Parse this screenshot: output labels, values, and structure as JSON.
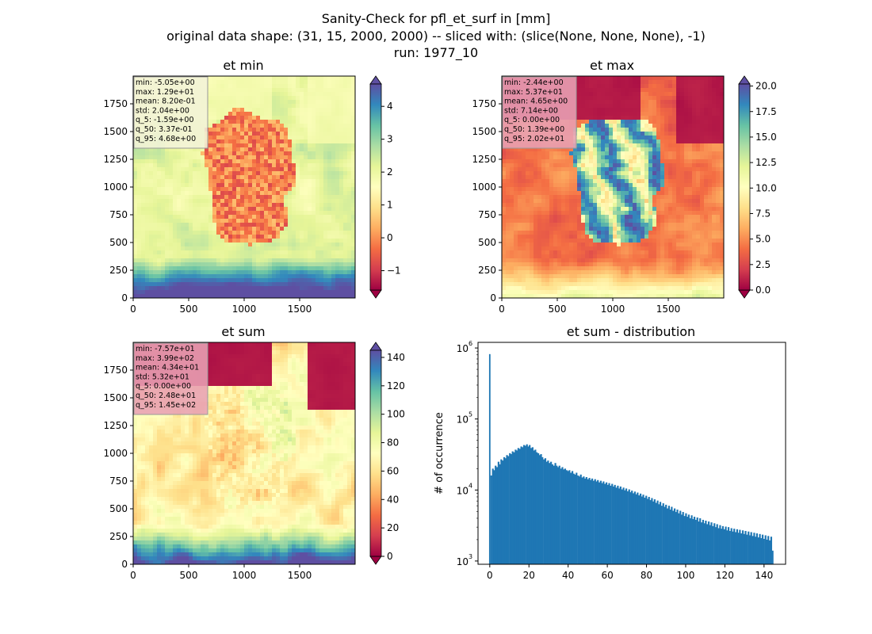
{
  "figure": {
    "title_lines": [
      "Sanity-Check for pfl_et_surf in [mm]",
      "original data shape: (31, 15, 2000, 2000) -- sliced with: (slice(None, None, None), -1)",
      "run: 1977_10"
    ]
  },
  "colors": {
    "spectral": [
      "#9e0142",
      "#d53e4f",
      "#f46d43",
      "#fdae61",
      "#fee08b",
      "#ffffbf",
      "#e6f598",
      "#abdda4",
      "#66c2a5",
      "#3288bd",
      "#5e4fa2"
    ],
    "histogram_bar": "#1f77b4",
    "stats_box_light": "#f2f2d8",
    "stats_box_pink": "#e8a0b4"
  },
  "chart_data": [
    {
      "type": "heatmap",
      "title": "et min",
      "xlim": [
        0,
        2000
      ],
      "ylim": [
        0,
        2000
      ],
      "xticks": [
        "0",
        "500",
        "1000",
        "1500"
      ],
      "yticks": [
        "0",
        "250",
        "500",
        "750",
        "1000",
        "1250",
        "1500",
        "1750"
      ],
      "colorbar": {
        "range": [
          -1.59,
          4.68
        ],
        "ticks": [
          "−1",
          "0",
          "1",
          "2",
          "3",
          "4"
        ],
        "tick_values": [
          -1,
          0,
          1,
          2,
          3,
          4
        ],
        "extend": "both"
      },
      "stats": [
        "min: -5.05e+00",
        "max: 1.29e+01",
        "mean: 8.20e-01",
        "std: 2.04e+00",
        "q_5: -1.59e+00",
        "q_50: 3.37e-01",
        "q_95: 4.68e+00"
      ]
    },
    {
      "type": "heatmap",
      "title": "et max",
      "xlim": [
        0,
        2000
      ],
      "ylim": [
        0,
        2000
      ],
      "xticks": [
        "0",
        "500",
        "1000",
        "1500"
      ],
      "yticks": [
        "0",
        "250",
        "500",
        "750",
        "1000",
        "1250",
        "1500",
        "1750"
      ],
      "colorbar": {
        "range": [
          0.0,
          20.2
        ],
        "ticks": [
          "0.0",
          "2.5",
          "5.0",
          "7.5",
          "10.0",
          "12.5",
          "15.0",
          "17.5",
          "20.0"
        ],
        "tick_values": [
          0,
          2.5,
          5,
          7.5,
          10,
          12.5,
          15,
          17.5,
          20
        ],
        "extend": "both"
      },
      "stats": [
        "min: -2.44e+00",
        "max: 5.37e+01",
        "mean: 4.65e+00",
        "std: 7.14e+00",
        "q_5: 0.00e+00",
        "q_50: 1.39e+00",
        "q_95: 2.02e+01"
      ]
    },
    {
      "type": "heatmap",
      "title": "et sum",
      "xlim": [
        0,
        2000
      ],
      "ylim": [
        0,
        2000
      ],
      "xticks": [
        "0",
        "500",
        "1000",
        "1500"
      ],
      "yticks": [
        "0",
        "250",
        "500",
        "750",
        "1000",
        "1250",
        "1500",
        "1750"
      ],
      "colorbar": {
        "range": [
          0,
          145
        ],
        "ticks": [
          "0",
          "20",
          "40",
          "60",
          "80",
          "100",
          "120",
          "140"
        ],
        "tick_values": [
          0,
          20,
          40,
          60,
          80,
          100,
          120,
          140
        ],
        "extend": "both"
      },
      "stats": [
        "min: -7.57e+01",
        "max: 3.99e+02",
        "mean: 4.34e+01",
        "std: 5.32e+01",
        "q_5: 0.00e+00",
        "q_50: 2.48e+01",
        "q_95: 1.45e+02"
      ]
    },
    {
      "type": "bar",
      "title": "et sum - distribution",
      "ylabel": "# of occurrence",
      "yscale": "log",
      "xlim": [
        -6,
        151
      ],
      "ylim": [
        900,
        1200000
      ],
      "xticks": [
        0,
        20,
        40,
        60,
        80,
        100,
        120,
        140
      ],
      "yticks": [
        {
          "label": "10",
          "exp": "3",
          "value": 1000
        },
        {
          "label": "10",
          "exp": "4",
          "value": 10000
        },
        {
          "label": "10",
          "exp": "5",
          "value": 100000
        },
        {
          "label": "10",
          "exp": "6",
          "value": 1000000
        }
      ],
      "bin_width": 0.73,
      "spike": {
        "x": 0,
        "value": 820000
      },
      "bins": [
        [
          0.7,
          16000
        ],
        [
          1.5,
          20000
        ],
        [
          2.2,
          19000
        ],
        [
          2.9,
          22000
        ],
        [
          3.6,
          21000
        ],
        [
          4.4,
          25000
        ],
        [
          5.1,
          23000
        ],
        [
          5.8,
          27000
        ],
        [
          6.5,
          26000
        ],
        [
          7.3,
          29000
        ],
        [
          8.0,
          28000
        ],
        [
          8.7,
          31000
        ],
        [
          9.4,
          30000
        ],
        [
          10.2,
          33000
        ],
        [
          10.9,
          32000
        ],
        [
          11.6,
          35000
        ],
        [
          12.3,
          34000
        ],
        [
          13.1,
          37000
        ],
        [
          13.8,
          36000
        ],
        [
          14.5,
          39000
        ],
        [
          15.2,
          38000
        ],
        [
          16.0,
          41000
        ],
        [
          16.7,
          40000
        ],
        [
          17.4,
          43000
        ],
        [
          18.1,
          42000
        ],
        [
          18.9,
          44000
        ],
        [
          19.6,
          41000
        ],
        [
          20.3,
          43000
        ],
        [
          21.0,
          39000
        ],
        [
          21.8,
          40000
        ],
        [
          22.5,
          36000
        ],
        [
          23.2,
          37000
        ],
        [
          23.9,
          34000
        ],
        [
          24.7,
          33000
        ],
        [
          25.4,
          31000
        ],
        [
          26.1,
          32000
        ],
        [
          26.8,
          29000
        ],
        [
          27.6,
          27000
        ],
        [
          28.3,
          28000
        ],
        [
          29.0,
          25000
        ],
        [
          29.7,
          26000
        ],
        [
          30.5,
          24000
        ],
        [
          31.2,
          25000
        ],
        [
          31.9,
          23000
        ],
        [
          32.6,
          22000
        ],
        [
          33.4,
          24000
        ],
        [
          34.1,
          22000
        ],
        [
          34.8,
          21000
        ],
        [
          35.5,
          22000
        ],
        [
          36.3,
          20000
        ],
        [
          37.0,
          21000
        ],
        [
          37.7,
          19500
        ],
        [
          38.4,
          20000
        ],
        [
          39.2,
          19000
        ],
        [
          39.9,
          18500
        ],
        [
          40.6,
          19000
        ],
        [
          41.3,
          17500
        ],
        [
          42.1,
          18500
        ],
        [
          42.8,
          17000
        ],
        [
          43.5,
          16500
        ],
        [
          44.2,
          17500
        ],
        [
          45.0,
          16000
        ],
        [
          45.7,
          15500
        ],
        [
          46.4,
          16500
        ],
        [
          47.1,
          15000
        ],
        [
          47.9,
          15500
        ],
        [
          48.6,
          14500
        ],
        [
          49.3,
          15200
        ],
        [
          50.0,
          14200
        ],
        [
          50.8,
          14800
        ],
        [
          51.5,
          13800
        ],
        [
          52.2,
          14500
        ],
        [
          52.9,
          13500
        ],
        [
          53.7,
          14200
        ],
        [
          54.4,
          13200
        ],
        [
          55.1,
          13800
        ],
        [
          55.8,
          12800
        ],
        [
          56.6,
          13500
        ],
        [
          57.3,
          12500
        ],
        [
          58.0,
          13200
        ],
        [
          58.7,
          12200
        ],
        [
          59.5,
          12800
        ],
        [
          60.2,
          11800
        ],
        [
          60.9,
          12500
        ],
        [
          61.6,
          11500
        ],
        [
          62.4,
          12200
        ],
        [
          63.1,
          11200
        ],
        [
          63.8,
          11800
        ],
        [
          64.5,
          10800
        ],
        [
          65.3,
          11500
        ],
        [
          66.0,
          10500
        ],
        [
          66.7,
          11200
        ],
        [
          67.4,
          10200
        ],
        [
          68.2,
          10800
        ],
        [
          68.9,
          9900
        ],
        [
          69.6,
          10500
        ],
        [
          70.3,
          9600
        ],
        [
          71.1,
          10200
        ],
        [
          71.8,
          9300
        ],
        [
          72.5,
          9800
        ],
        [
          73.2,
          9000
        ],
        [
          74.0,
          9500
        ],
        [
          74.7,
          8700
        ],
        [
          75.4,
          9200
        ],
        [
          76.1,
          8400
        ],
        [
          76.9,
          8900
        ],
        [
          77.6,
          8100
        ],
        [
          78.3,
          8600
        ],
        [
          79.0,
          7800
        ],
        [
          79.8,
          8300
        ],
        [
          80.5,
          7500
        ],
        [
          81.2,
          8000
        ],
        [
          81.9,
          7200
        ],
        [
          82.7,
          7700
        ],
        [
          83.4,
          6900
        ],
        [
          84.1,
          7400
        ],
        [
          84.8,
          6600
        ],
        [
          85.6,
          7100
        ],
        [
          86.3,
          6300
        ],
        [
          87.0,
          6800
        ],
        [
          87.7,
          6000
        ],
        [
          88.5,
          6500
        ],
        [
          89.2,
          5800
        ],
        [
          89.9,
          6200
        ],
        [
          90.6,
          5500
        ],
        [
          91.4,
          6000
        ],
        [
          92.1,
          5300
        ],
        [
          92.8,
          5800
        ],
        [
          93.5,
          5100
        ],
        [
          94.3,
          5500
        ],
        [
          95.0,
          4900
        ],
        [
          95.7,
          5300
        ],
        [
          96.4,
          4700
        ],
        [
          97.2,
          5100
        ],
        [
          97.9,
          4500
        ],
        [
          98.6,
          4900
        ],
        [
          99.3,
          4300
        ],
        [
          100.1,
          4700
        ],
        [
          100.8,
          4200
        ],
        [
          101.5,
          4500
        ],
        [
          102.2,
          4000
        ],
        [
          103.0,
          4400
        ],
        [
          103.7,
          3900
        ],
        [
          104.4,
          4200
        ],
        [
          105.1,
          3800
        ],
        [
          105.9,
          4100
        ],
        [
          106.6,
          3600
        ],
        [
          107.3,
          4000
        ],
        [
          108.0,
          3500
        ],
        [
          108.8,
          3800
        ],
        [
          109.5,
          3400
        ],
        [
          110.2,
          3700
        ],
        [
          110.9,
          3300
        ],
        [
          111.7,
          3600
        ],
        [
          112.4,
          3200
        ],
        [
          113.1,
          3500
        ],
        [
          113.8,
          3100
        ],
        [
          114.6,
          3400
        ],
        [
          115.3,
          3000
        ],
        [
          116.0,
          3300
        ],
        [
          116.7,
          2900
        ],
        [
          117.5,
          3200
        ],
        [
          118.2,
          2850
        ],
        [
          118.9,
          3100
        ],
        [
          119.6,
          2800
        ],
        [
          120.4,
          3050
        ],
        [
          121.1,
          2700
        ],
        [
          121.8,
          3000
        ],
        [
          122.5,
          2650
        ],
        [
          123.3,
          2900
        ],
        [
          124.0,
          2600
        ],
        [
          124.7,
          2850
        ],
        [
          125.4,
          2550
        ],
        [
          126.2,
          2800
        ],
        [
          126.9,
          2500
        ],
        [
          127.6,
          2750
        ],
        [
          128.3,
          2450
        ],
        [
          129.1,
          2700
        ],
        [
          129.8,
          2400
        ],
        [
          130.5,
          2650
        ],
        [
          131.2,
          2350
        ],
        [
          132.0,
          2600
        ],
        [
          132.7,
          2300
        ],
        [
          133.4,
          2550
        ],
        [
          134.1,
          2250
        ],
        [
          134.9,
          2500
        ],
        [
          135.6,
          2200
        ],
        [
          136.3,
          2450
        ],
        [
          137.0,
          2150
        ],
        [
          137.8,
          2400
        ],
        [
          138.5,
          2100
        ],
        [
          139.2,
          2350
        ],
        [
          139.9,
          2050
        ],
        [
          140.7,
          2300
        ],
        [
          141.4,
          2000
        ],
        [
          142.1,
          2250
        ],
        [
          142.8,
          1950
        ],
        [
          143.6,
          2200
        ],
        [
          144.3,
          1400
        ]
      ]
    }
  ]
}
